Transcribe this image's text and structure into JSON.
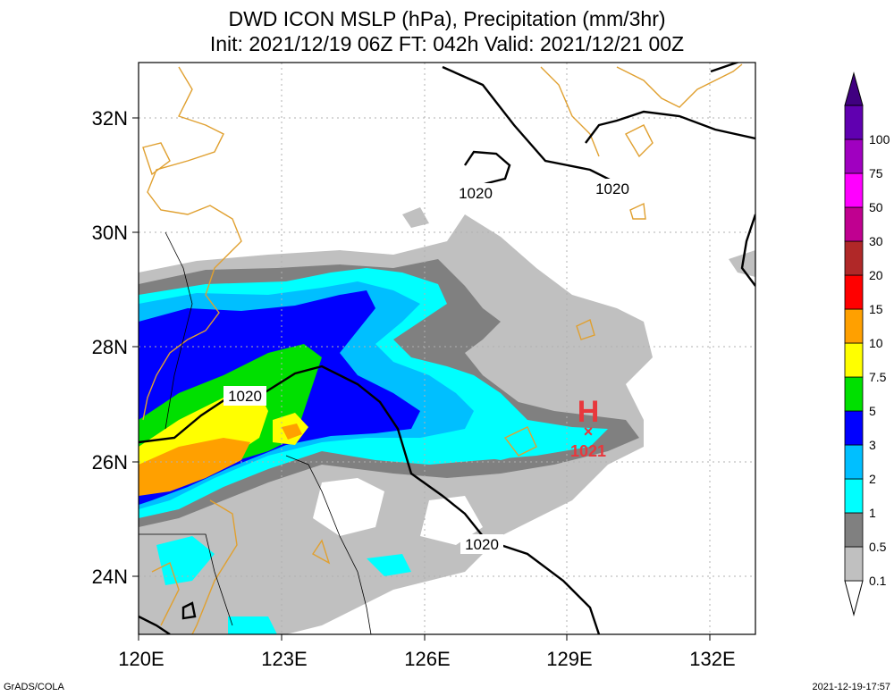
{
  "title": {
    "line1": "DWD ICON MSLP (hPa), Precipitation (mm/3hr)",
    "line2": "Init: 2021/12/19 06Z  FT: 042h  Valid: 2021/12/21 00Z"
  },
  "axes": {
    "lat_labels": [
      "32N",
      "30N",
      "28N",
      "26N",
      "24N"
    ],
    "lon_labels": [
      "120E",
      "123E",
      "126E",
      "129E",
      "132E"
    ]
  },
  "isobar_labels": [
    "1020",
    "1020",
    "1020",
    "1020"
  ],
  "high_center": {
    "symbol": "H",
    "value": "1021",
    "color": "#e8383d"
  },
  "colorbar": {
    "labels": [
      "0.1",
      "0.5",
      "1",
      "2",
      "3",
      "5",
      "7.5",
      "10",
      "15",
      "20",
      "30",
      "50",
      "75",
      "100"
    ],
    "colors": [
      "#c0c0c0",
      "#808080",
      "#00ffff",
      "#00bfff",
      "#0000ff",
      "#00e000",
      "#ffff00",
      "#ffa000",
      "#ff0000",
      "#b02828",
      "#c00090",
      "#ff00ff",
      "#a000c0",
      "#6000b0",
      "#400080"
    ]
  },
  "footer": {
    "left": "GrADS/COLA",
    "right": "2021-12-19-17:57"
  }
}
